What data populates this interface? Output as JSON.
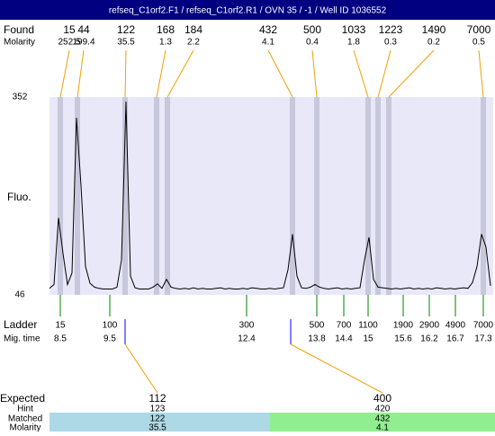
{
  "header": {
    "title": "refseq_C1orf2.F1 / refseq_C1orf2.R1 / OVN 35 / -1 / Well ID 1036552"
  },
  "found": {
    "label": "Found",
    "sublabel": "Molarity",
    "peaks": [
      {
        "size": 15,
        "molarity": 252.5
      },
      {
        "size": 44,
        "molarity": 199.4
      },
      {
        "size": 122,
        "molarity": 35.5
      },
      {
        "size": 168,
        "molarity": 1.3
      },
      {
        "size": 184,
        "molarity": 2.2
      },
      {
        "size": 432,
        "molarity": 4.1
      },
      {
        "size": 500,
        "molarity": 0.4
      },
      {
        "size": 1033,
        "molarity": 1.8
      },
      {
        "size": 1223,
        "molarity": 0.3
      },
      {
        "size": 1490,
        "molarity": 0.2
      },
      {
        "size": 7000,
        "molarity": 0.5
      }
    ]
  },
  "plot": {
    "ylabel": "Fluo.",
    "ylim": [
      46,
      352
    ],
    "yticks": [
      46,
      352
    ],
    "trace": [
      56,
      62,
      165,
      110,
      62,
      80,
      320,
      215,
      90,
      64,
      58,
      56,
      55,
      55,
      55,
      58,
      100,
      345,
      75,
      57,
      55,
      55,
      55,
      58,
      63,
      56,
      70,
      58,
      56,
      55,
      56,
      55,
      57,
      55,
      56,
      55,
      55,
      56,
      57,
      55,
      56,
      55,
      55,
      56,
      55,
      57,
      56,
      55,
      55,
      56,
      55,
      56,
      57,
      85,
      140,
      75,
      57,
      56,
      58,
      62,
      58,
      56,
      55,
      56,
      57,
      55,
      56,
      55,
      56,
      57,
      100,
      135,
      70,
      58,
      57,
      56,
      55,
      56,
      55,
      56,
      57,
      55,
      56,
      55,
      56,
      55,
      57,
      56,
      55,
      56,
      55,
      56,
      57,
      56,
      65,
      90,
      140,
      120,
      60
    ]
  },
  "ladder": {
    "label": "Ladder",
    "sublabel": "Mig. time",
    "sizes": [
      15,
      100,
      300,
      500,
      700,
      1100,
      1900,
      2900,
      4900,
      7000
    ],
    "times": [
      8.5,
      9.5,
      12.4,
      13.8,
      14.4,
      15,
      15.6,
      16.2,
      16.7,
      17.3
    ]
  },
  "expected": {
    "labels": [
      "Expected",
      "Hint",
      "Matched",
      "Molarity"
    ],
    "items": [
      {
        "expected": 112,
        "hint": 123,
        "matched": 122,
        "molarity": 35.5
      },
      {
        "expected": 400,
        "hint": 420,
        "matched": 432,
        "molarity": 4.1
      }
    ]
  }
}
